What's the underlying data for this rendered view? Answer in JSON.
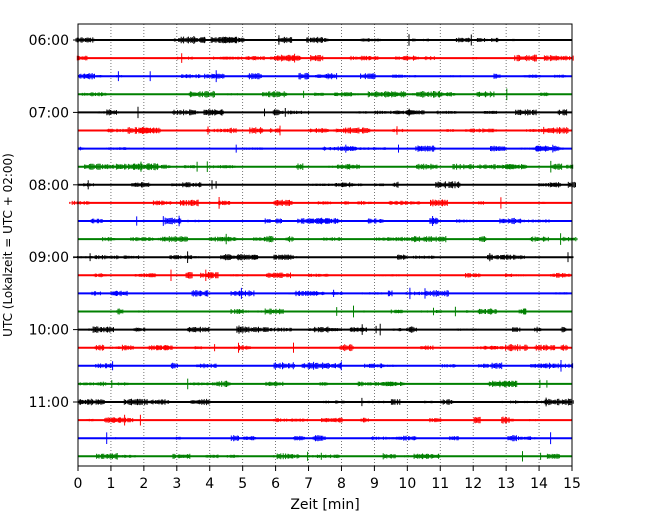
{
  "chart_data": {
    "type": "line",
    "title": "",
    "xlabel": "Zeit  [min]",
    "ylabel": "UTC (Lokalzeit = UTC + 02:00)",
    "xlim": [
      0,
      15
    ],
    "x_ticks": [
      "0",
      "1",
      "2",
      "3",
      "4",
      "5",
      "6",
      "7",
      "8",
      "9",
      "10",
      "11",
      "12",
      "13",
      "14",
      "15"
    ],
    "y_ticks": [
      "06:00",
      "07:00",
      "08:00",
      "09:00",
      "10:00",
      "11:00"
    ],
    "grid": "vertical-dotted",
    "trace_colors": [
      "#000000",
      "#ff0000",
      "#0000ff",
      "#008000"
    ],
    "row_start": "06:00",
    "row_interval_min": 15,
    "series": [
      {
        "row": "06:00",
        "color": "#000000"
      },
      {
        "row": "06:15",
        "color": "#ff0000"
      },
      {
        "row": "06:30",
        "color": "#0000ff"
      },
      {
        "row": "06:45",
        "color": "#008000"
      },
      {
        "row": "07:00",
        "color": "#000000"
      },
      {
        "row": "07:15",
        "color": "#ff0000"
      },
      {
        "row": "07:30",
        "color": "#0000ff"
      },
      {
        "row": "07:45",
        "color": "#008000"
      },
      {
        "row": "08:00",
        "color": "#000000"
      },
      {
        "row": "08:15",
        "color": "#ff0000"
      },
      {
        "row": "08:30",
        "color": "#0000ff"
      },
      {
        "row": "08:45",
        "color": "#008000"
      },
      {
        "row": "09:00",
        "color": "#000000"
      },
      {
        "row": "09:15",
        "color": "#ff0000"
      },
      {
        "row": "09:30",
        "color": "#0000ff"
      },
      {
        "row": "09:45",
        "color": "#008000"
      },
      {
        "row": "10:00",
        "color": "#000000"
      },
      {
        "row": "10:15",
        "color": "#ff0000"
      },
      {
        "row": "10:30",
        "color": "#0000ff"
      },
      {
        "row": "10:45",
        "color": "#008000"
      },
      {
        "row": "11:00",
        "color": "#000000"
      },
      {
        "row": "11:15",
        "color": "#ff0000"
      },
      {
        "row": "11:30",
        "color": "#0000ff"
      },
      {
        "row": "11:45",
        "color": "#008000"
      }
    ]
  }
}
